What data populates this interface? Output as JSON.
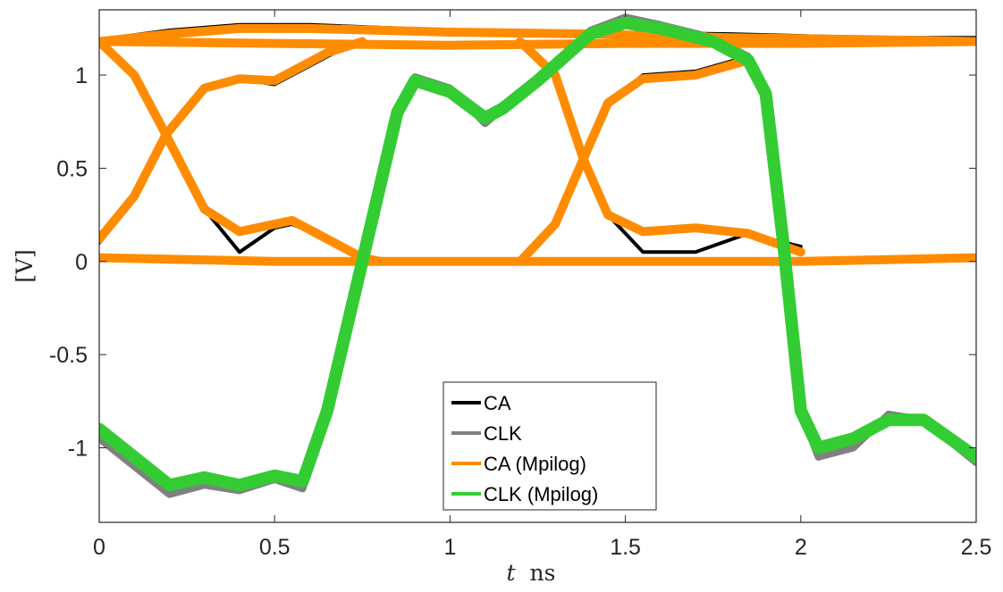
{
  "chart_data": {
    "type": "line",
    "title": "",
    "xlabel_main": "t",
    "xlabel_unit": "ns",
    "ylabel": "[V]",
    "xlim": [
      0,
      2.5
    ],
    "ylim": [
      -1.4,
      1.35
    ],
    "xticks": [
      0,
      0.5,
      1,
      1.5,
      2,
      2.5
    ],
    "xtick_labels": [
      "0",
      "0.5",
      "1",
      "1.5",
      "2",
      "2.5"
    ],
    "yticks": [
      1,
      0.5,
      0,
      -0.5,
      -1
    ],
    "ytick_labels": [
      "1",
      "0.5",
      "0",
      "-0.5",
      "-1"
    ],
    "grid": false,
    "legend_position": "bottom-center",
    "series": [
      {
        "name": "CA",
        "color": "#000000",
        "traces": [
          {
            "x": [
              0,
              0.2,
              0.4,
              0.6,
              1.0,
              1.4,
              1.8,
              2.2,
              2.5
            ],
            "y": [
              1.19,
              1.24,
              1.27,
              1.27,
              1.24,
              1.23,
              1.22,
              1.2,
              1.2
            ]
          },
          {
            "x": [
              0,
              0.5,
              1.0,
              1.5,
              2.0,
              2.5
            ],
            "y": [
              1.19,
              1.18,
              1.17,
              1.18,
              1.18,
              1.19
            ]
          },
          {
            "x": [
              0,
              0.5,
              1.0,
              1.5,
              2.0,
              2.5
            ],
            "y": [
              0.03,
              0.0,
              0.01,
              0.0,
              0.0,
              0.01
            ]
          },
          {
            "x": [
              0,
              0.1,
              0.19,
              0.3,
              0.4,
              0.5,
              0.55,
              0.65,
              0.75,
              0.8
            ],
            "y": [
              1.19,
              1.0,
              0.68,
              0.28,
              0.05,
              0.18,
              0.2,
              0.12,
              0.02,
              0.0
            ]
          },
          {
            "x": [
              0,
              0.1,
              0.19,
              0.3,
              0.4,
              0.5,
              0.55,
              0.65,
              0.75
            ],
            "y": [
              0.1,
              0.35,
              0.68,
              0.93,
              0.98,
              0.95,
              1.0,
              1.1,
              1.19
            ]
          },
          {
            "x": [
              1.2,
              1.3,
              1.38,
              1.45,
              1.55,
              1.7,
              1.85,
              2.0
            ],
            "y": [
              1.19,
              1.0,
              0.55,
              0.25,
              0.05,
              0.05,
              0.15,
              0.08
            ]
          },
          {
            "x": [
              1.2,
              1.3,
              1.38,
              1.45,
              1.55,
              1.7,
              1.85
            ],
            "y": [
              0.0,
              0.2,
              0.55,
              0.85,
              1.0,
              1.02,
              1.1
            ]
          }
        ]
      },
      {
        "name": "CLK",
        "color": "#808080",
        "traces": [
          {
            "x": [
              0,
              0.1,
              0.2,
              0.3,
              0.4,
              0.5,
              0.58,
              0.65,
              0.75,
              0.85,
              0.9,
              1.0,
              1.1,
              1.15,
              1.25,
              1.4,
              1.5,
              1.6,
              1.75,
              1.85,
              1.9,
              1.95,
              2.0,
              2.05,
              2.15,
              2.25,
              2.35,
              2.5
            ],
            "y": [
              -0.95,
              -1.1,
              -1.25,
              -1.2,
              -1.23,
              -1.17,
              -1.22,
              -0.8,
              0.0,
              0.8,
              0.99,
              0.93,
              0.74,
              0.82,
              0.98,
              1.24,
              1.31,
              1.27,
              1.2,
              1.1,
              0.9,
              0.1,
              -0.8,
              -1.05,
              -1.0,
              -0.82,
              -0.85,
              -1.08
            ]
          }
        ]
      },
      {
        "name": "CA (Mpilog)",
        "color": "#FF8C00",
        "traces": [
          {
            "x": [
              0,
              0.2,
              0.4,
              0.6,
              1.0,
              1.4,
              1.8,
              2.2,
              2.5
            ],
            "y": [
              1.18,
              1.22,
              1.25,
              1.25,
              1.23,
              1.22,
              1.2,
              1.19,
              1.18
            ]
          },
          {
            "x": [
              0,
              0.5,
              1.0,
              1.5,
              2.0,
              2.5
            ],
            "y": [
              1.18,
              1.17,
              1.16,
              1.17,
              1.17,
              1.18
            ]
          },
          {
            "x": [
              0,
              0.5,
              1.0,
              1.5,
              2.0,
              2.5
            ],
            "y": [
              0.02,
              0.0,
              0.0,
              0.0,
              0.0,
              0.02
            ]
          },
          {
            "x": [
              0,
              0.1,
              0.19,
              0.3,
              0.4,
              0.5,
              0.55,
              0.65,
              0.75,
              0.8
            ],
            "y": [
              1.18,
              1.0,
              0.68,
              0.28,
              0.16,
              0.2,
              0.22,
              0.12,
              0.02,
              0.0
            ]
          },
          {
            "x": [
              0,
              0.1,
              0.19,
              0.3,
              0.4,
              0.5,
              0.55,
              0.65,
              0.75
            ],
            "y": [
              0.12,
              0.35,
              0.68,
              0.93,
              0.98,
              0.97,
              1.02,
              1.12,
              1.18
            ]
          },
          {
            "x": [
              1.2,
              1.3,
              1.38,
              1.45,
              1.55,
              1.7,
              1.85,
              2.0
            ],
            "y": [
              1.18,
              1.0,
              0.55,
              0.25,
              0.16,
              0.18,
              0.15,
              0.05
            ]
          },
          {
            "x": [
              1.2,
              1.3,
              1.38,
              1.45,
              1.55,
              1.7,
              1.85
            ],
            "y": [
              0.0,
              0.2,
              0.55,
              0.85,
              0.98,
              1.0,
              1.08
            ]
          }
        ]
      },
      {
        "name": "CLK (Mpilog)",
        "color": "#33CC33",
        "traces": [
          {
            "x": [
              0,
              0.1,
              0.2,
              0.3,
              0.4,
              0.5,
              0.58,
              0.65,
              0.75,
              0.85,
              0.9,
              1.0,
              1.1,
              1.15,
              1.25,
              1.4,
              1.5,
              1.6,
              1.75,
              1.85,
              1.9,
              1.95,
              2.0,
              2.05,
              2.15,
              2.25,
              2.35,
              2.5
            ],
            "y": [
              -0.9,
              -1.05,
              -1.2,
              -1.16,
              -1.2,
              -1.15,
              -1.18,
              -0.8,
              0.0,
              0.8,
              0.97,
              0.91,
              0.77,
              0.82,
              0.97,
              1.22,
              1.28,
              1.25,
              1.18,
              1.08,
              0.9,
              0.1,
              -0.8,
              -1.0,
              -0.95,
              -0.85,
              -0.85,
              -1.05
            ]
          }
        ]
      }
    ]
  }
}
